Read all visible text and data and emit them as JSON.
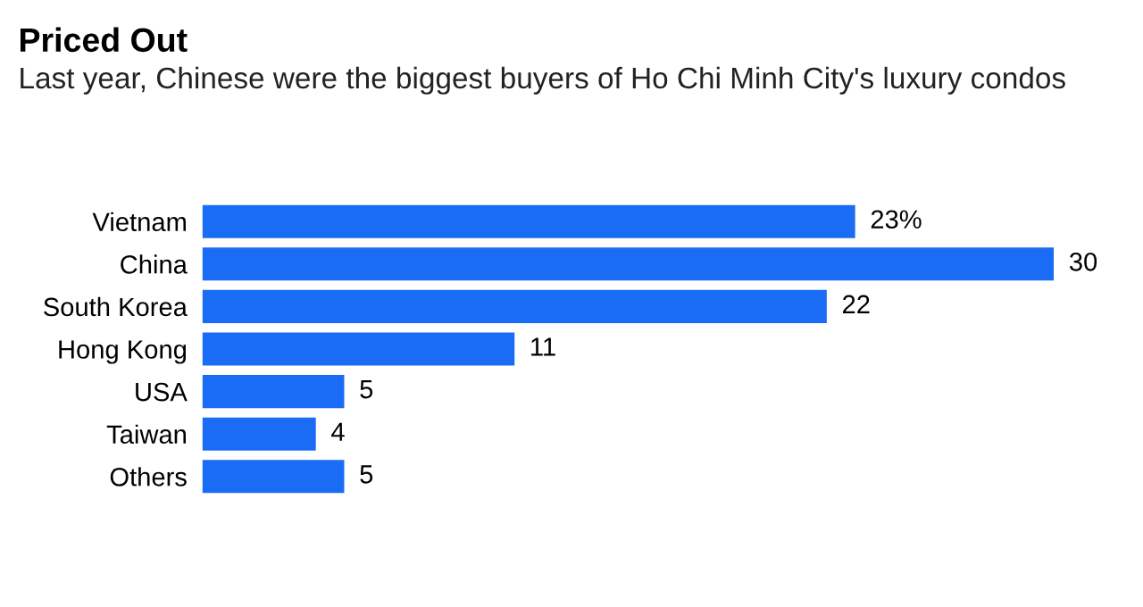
{
  "chart_data": {
    "type": "bar",
    "orientation": "horizontal",
    "title": "Priced Out",
    "subtitle": "Last year, Chinese were the biggest buyers of Ho Chi Minh City's luxury condos",
    "categories": [
      "Vietnam",
      "China",
      "South Korea",
      "Hong Kong",
      "USA",
      "Taiwan",
      "Others"
    ],
    "values": [
      23,
      30,
      22,
      11,
      5,
      4,
      5
    ],
    "value_labels": [
      "23%",
      "30",
      "22",
      "11",
      "5",
      "4",
      "5"
    ],
    "color": "#1a6cf5"
  }
}
